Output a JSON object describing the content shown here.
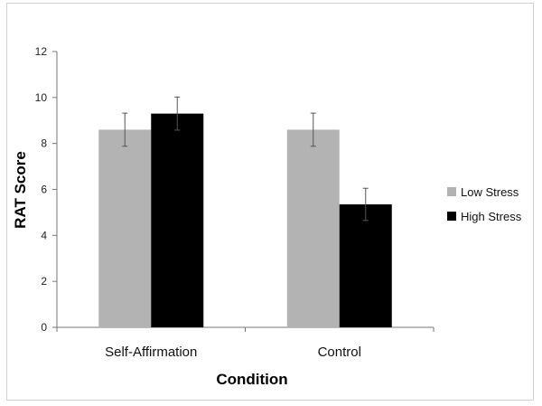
{
  "chart_data": {
    "type": "bar",
    "categories": [
      "Self-Affirmation",
      "Control"
    ],
    "series": [
      {
        "name": "Low Stress",
        "values": [
          8.6,
          8.6
        ],
        "errors": [
          0.72,
          0.72
        ],
        "color": "#b3b3b3"
      },
      {
        "name": "High Stress",
        "values": [
          9.3,
          5.35
        ],
        "errors": [
          0.72,
          0.7
        ],
        "color": "#000000"
      }
    ],
    "title": "",
    "xlabel": "Condition",
    "ylabel": "RAT Score",
    "ylim": [
      0,
      12
    ],
    "yticks": [
      0,
      2,
      4,
      6,
      8,
      10,
      12
    ],
    "grid": false,
    "legend_position": "right"
  }
}
